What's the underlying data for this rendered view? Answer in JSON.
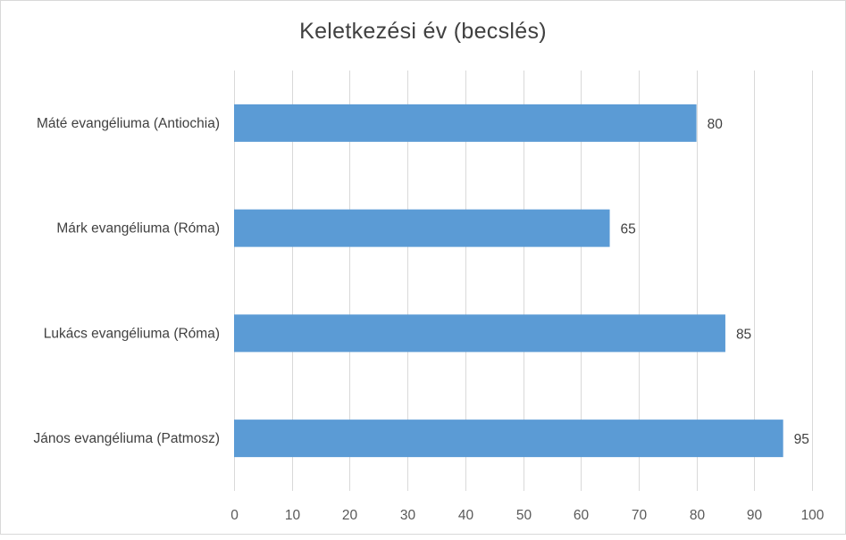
{
  "chart_data": {
    "type": "bar",
    "orientation": "horizontal",
    "title": "Keletkezési  év (becslés)",
    "categories": [
      "Máté evangéliuma (Antiochia)",
      "Márk evangéliuma (Róma)",
      "Lukács evangéliuma (Róma)",
      "János evangéliuma (Patmosz)"
    ],
    "values": [
      80,
      65,
      85,
      95
    ],
    "xlim": [
      0,
      100
    ],
    "ticks": [
      "0",
      "10",
      "20",
      "30",
      "40",
      "50",
      "60",
      "70",
      "80",
      "90",
      "100"
    ],
    "grid": true,
    "legend": "none",
    "bar_color": "#5b9bd5",
    "grid_color": "#d9d9d9"
  }
}
